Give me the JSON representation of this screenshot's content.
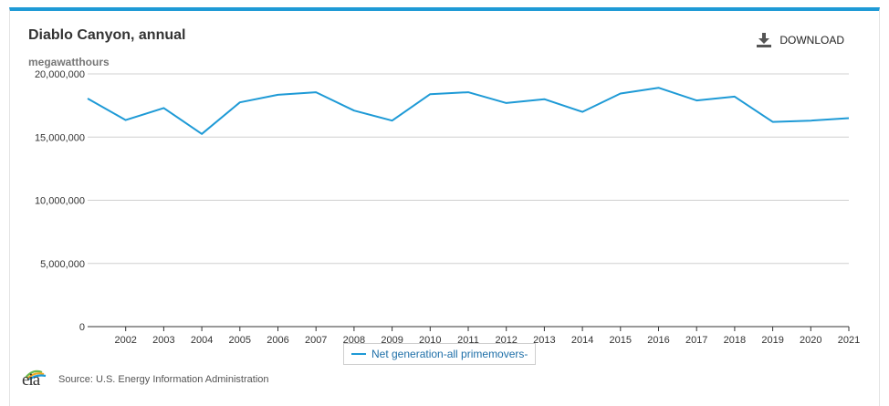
{
  "chart": {
    "title": "Diablo Canyon, annual",
    "units": "megawatthours",
    "download_label": "DOWNLOAD",
    "legend_label": "Net generation-all primemovers-",
    "source": "Source: U.S. Energy Information Administration",
    "logo_text": "eia"
  },
  "colors": {
    "accent": "#1e9ad6",
    "grid": "#d0d0d0"
  },
  "icons": {
    "download": "download-icon",
    "logo": "eia-logo-icon"
  },
  "chart_data": {
    "type": "line",
    "title": "Diablo Canyon, annual",
    "ylabel": "megawatthours",
    "xlabel": "",
    "ylim": [
      0,
      20000000
    ],
    "yticks": [
      0,
      5000000,
      10000000,
      15000000,
      20000000
    ],
    "ytick_labels": [
      "0",
      "5,000,000",
      "10,000,000",
      "15,000,000",
      "20,000,000"
    ],
    "x": [
      2001,
      2002,
      2003,
      2004,
      2005,
      2006,
      2007,
      2008,
      2009,
      2010,
      2011,
      2012,
      2013,
      2014,
      2015,
      2016,
      2017,
      2018,
      2019,
      2020,
      2021
    ],
    "xtick_labels": [
      "2002",
      "2003",
      "2004",
      "2005",
      "2006",
      "2007",
      "2008",
      "2009",
      "2010",
      "2011",
      "2012",
      "2013",
      "2014",
      "2015",
      "2016",
      "2017",
      "2018",
      "2019",
      "2020",
      "2021"
    ],
    "grid": true,
    "legend": "bottom-center",
    "series": [
      {
        "name": "Net generation-all primemovers-",
        "values": [
          18050000,
          16350000,
          17300000,
          15250000,
          17750000,
          18350000,
          18550000,
          17100000,
          16300000,
          18400000,
          18550000,
          17700000,
          18000000,
          17000000,
          18450000,
          18900000,
          17900000,
          18200000,
          16200000,
          16300000,
          16500000
        ]
      }
    ]
  }
}
